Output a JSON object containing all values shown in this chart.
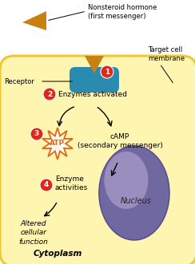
{
  "bg_color": "#ffffff",
  "cell_color": "#fef5b0",
  "cell_border_color": "#f0c830",
  "nucleus_grad_outer": "#8878b0",
  "nucleus_grad_inner": "#bba8d8",
  "receptor_color": "#2a8ab0",
  "hormone_color": "#c88010",
  "circle_color": "#e02818",
  "atp_spike_color": "#e06818",
  "atp_fill": "#fdf8e8",
  "arrow_color": "#111111",
  "text_color": "#111111",
  "title": "Nonsteroid hormone\n(first messenger)",
  "label_target_cell": "Target cell\nmembrane",
  "label_receptor": "Receptor",
  "label_2": "Enzymes activated",
  "label_camp": "cAMP\n(secondary messenger)",
  "label_atp": "ATP",
  "label_4_title": "Enzyme\nactivities",
  "label_altered": "Altered\ncellular\nfunction",
  "label_nucleus": "Nucleus",
  "label_cytoplasm": "Cytoplasm"
}
